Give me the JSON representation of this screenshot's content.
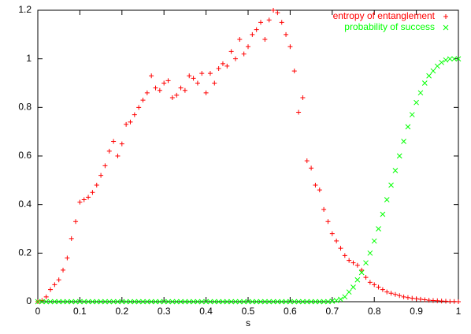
{
  "chart_data": {
    "type": "scatter",
    "x_label": "s",
    "x": [
      0,
      0.01,
      0.02,
      0.03,
      0.04,
      0.05,
      0.06,
      0.07,
      0.08,
      0.09,
      0.1,
      0.11,
      0.12,
      0.13,
      0.14,
      0.15,
      0.16,
      0.17,
      0.18,
      0.19,
      0.2,
      0.21,
      0.22,
      0.23,
      0.24,
      0.25,
      0.26,
      0.27,
      0.28,
      0.29,
      0.3,
      0.31,
      0.32,
      0.33,
      0.34,
      0.35,
      0.36,
      0.37,
      0.38,
      0.39,
      0.4,
      0.41,
      0.42,
      0.43,
      0.44,
      0.45,
      0.46,
      0.47,
      0.48,
      0.49,
      0.5,
      0.51,
      0.52,
      0.53,
      0.54,
      0.55,
      0.56,
      0.57,
      0.58,
      0.59,
      0.6,
      0.61,
      0.62,
      0.63,
      0.64,
      0.65,
      0.66,
      0.67,
      0.68,
      0.69,
      0.7,
      0.71,
      0.72,
      0.73,
      0.74,
      0.75,
      0.76,
      0.77,
      0.78,
      0.79,
      0.8,
      0.81,
      0.82,
      0.83,
      0.84,
      0.85,
      0.86,
      0.87,
      0.88,
      0.89,
      0.9,
      0.91,
      0.92,
      0.93,
      0.94,
      0.95,
      0.96,
      0.97,
      0.98,
      0.99,
      1
    ],
    "series": [
      {
        "name": "entropy of entanglement",
        "color": "#ff0000",
        "marker": "plus",
        "values": [
          0,
          0.005,
          0.02,
          0.05,
          0.07,
          0.09,
          0.13,
          0.18,
          0.26,
          0.33,
          0.41,
          0.42,
          0.43,
          0.45,
          0.48,
          0.52,
          0.56,
          0.62,
          0.66,
          0.6,
          0.65,
          0.73,
          0.74,
          0.77,
          0.8,
          0.83,
          0.86,
          0.93,
          0.88,
          0.87,
          0.9,
          0.91,
          0.84,
          0.85,
          0.88,
          0.87,
          0.93,
          0.92,
          0.9,
          0.94,
          0.86,
          0.94,
          0.9,
          0.96,
          0.98,
          0.97,
          1.03,
          1.0,
          1.08,
          1.02,
          1.05,
          1.1,
          1.12,
          1.15,
          1.08,
          1.16,
          1.2,
          1.19,
          1.15,
          1.1,
          1.05,
          0.95,
          0.78,
          0.84,
          0.58,
          0.55,
          0.48,
          0.46,
          0.38,
          0.33,
          0.28,
          0.25,
          0.22,
          0.19,
          0.17,
          0.16,
          0.15,
          0.13,
          0.1,
          0.08,
          0.07,
          0.06,
          0.05,
          0.04,
          0.035,
          0.03,
          0.025,
          0.02,
          0.017,
          0.014,
          0.012,
          0.01,
          0.008,
          0.006,
          0.005,
          0.004,
          0.003,
          0.002,
          0.001,
          0.001,
          0
        ]
      },
      {
        "name": "probability of success",
        "color": "#00ff00",
        "marker": "cross",
        "values": [
          0,
          0,
          0,
          0,
          0,
          0,
          0,
          0,
          0,
          0,
          0,
          0,
          0,
          0,
          0,
          0,
          0,
          0,
          0,
          0,
          0,
          0,
          0,
          0,
          0,
          0,
          0,
          0,
          0,
          0,
          0,
          0,
          0,
          0,
          0,
          0,
          0,
          0,
          0,
          0,
          0,
          0,
          0,
          0,
          0,
          0,
          0,
          0,
          0,
          0,
          0,
          0,
          0,
          0,
          0,
          0,
          0,
          0,
          0,
          0,
          0,
          0,
          0,
          0,
          0,
          0,
          0,
          0,
          0,
          0,
          0.002,
          0.005,
          0.01,
          0.02,
          0.04,
          0.06,
          0.09,
          0.12,
          0.16,
          0.2,
          0.25,
          0.3,
          0.36,
          0.42,
          0.48,
          0.54,
          0.6,
          0.66,
          0.72,
          0.77,
          0.82,
          0.86,
          0.9,
          0.93,
          0.95,
          0.97,
          0.985,
          0.995,
          1,
          1,
          1
        ]
      }
    ],
    "xlim": [
      0,
      1
    ],
    "xticks": [
      0,
      0.1,
      0.2,
      0.3,
      0.4,
      0.5,
      0.6,
      0.7,
      0.8,
      0.9,
      1
    ],
    "ylim": [
      0,
      1.2
    ],
    "yticks": [
      0,
      0.2,
      0.4,
      0.6,
      0.8,
      1,
      1.2
    ],
    "grid": false,
    "legend": "top-right"
  }
}
